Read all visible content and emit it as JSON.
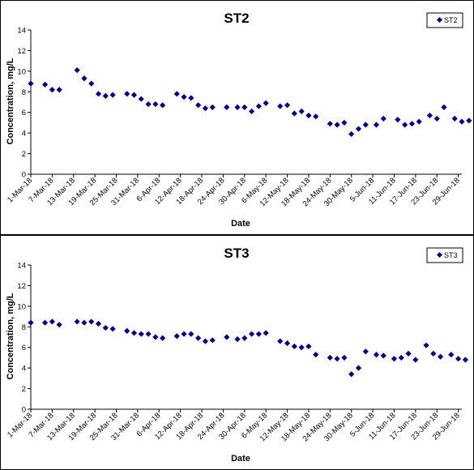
{
  "chart_data": [
    {
      "type": "scatter",
      "title": "ST2",
      "xlabel": "Date",
      "ylabel": "Concentration, mg/L",
      "ylim": [
        0,
        14
      ],
      "yticks": [
        0,
        2,
        4,
        6,
        8,
        10,
        12,
        14
      ],
      "xlim": [
        "2018-03-01",
        "2018-06-30"
      ],
      "xtick_labels": [
        "1-Mar-18",
        "7-Mar-18",
        "13-Mar-18",
        "19-Mar-18",
        "25-Mar-18",
        "31-Mar-18",
        "6-Apr-18",
        "12-Apr-18",
        "18-Apr-18",
        "24-Apr-18",
        "30-Apr-18",
        "6-May-18",
        "12-May-18",
        "18-May-18",
        "24-May-18",
        "30-May-18",
        "5-Jun-18",
        "11-Jun-18",
        "17-Jun-18",
        "23-Jun-18",
        "29-Jun-18"
      ],
      "grid": false,
      "legend": "top-right",
      "marker_color": "#000080",
      "series": [
        {
          "name": "ST2",
          "points": [
            {
              "x": "2018-03-01",
              "y": 8.8
            },
            {
              "x": "2018-03-05",
              "y": 8.7
            },
            {
              "x": "2018-03-07",
              "y": 8.2
            },
            {
              "x": "2018-03-09",
              "y": 8.2
            },
            {
              "x": "2018-03-14",
              "y": 10.1
            },
            {
              "x": "2018-03-16",
              "y": 9.3
            },
            {
              "x": "2018-03-18",
              "y": 8.8
            },
            {
              "x": "2018-03-20",
              "y": 7.8
            },
            {
              "x": "2018-03-22",
              "y": 7.6
            },
            {
              "x": "2018-03-24",
              "y": 7.7
            },
            {
              "x": "2018-03-28",
              "y": 7.8
            },
            {
              "x": "2018-03-30",
              "y": 7.7
            },
            {
              "x": "2018-04-01",
              "y": 7.3
            },
            {
              "x": "2018-04-03",
              "y": 6.8
            },
            {
              "x": "2018-04-05",
              "y": 6.8
            },
            {
              "x": "2018-04-07",
              "y": 6.7
            },
            {
              "x": "2018-04-11",
              "y": 7.8
            },
            {
              "x": "2018-04-13",
              "y": 7.5
            },
            {
              "x": "2018-04-15",
              "y": 7.4
            },
            {
              "x": "2018-04-17",
              "y": 6.7
            },
            {
              "x": "2018-04-19",
              "y": 6.4
            },
            {
              "x": "2018-04-21",
              "y": 6.5
            },
            {
              "x": "2018-04-25",
              "y": 6.5
            },
            {
              "x": "2018-04-28",
              "y": 6.5
            },
            {
              "x": "2018-04-30",
              "y": 6.5
            },
            {
              "x": "2018-05-02",
              "y": 6.1
            },
            {
              "x": "2018-05-04",
              "y": 6.6
            },
            {
              "x": "2018-05-06",
              "y": 6.9
            },
            {
              "x": "2018-05-10",
              "y": 6.6
            },
            {
              "x": "2018-05-12",
              "y": 6.7
            },
            {
              "x": "2018-05-14",
              "y": 5.9
            },
            {
              "x": "2018-05-16",
              "y": 6.1
            },
            {
              "x": "2018-05-18",
              "y": 5.7
            },
            {
              "x": "2018-05-20",
              "y": 5.6
            },
            {
              "x": "2018-05-24",
              "y": 4.9
            },
            {
              "x": "2018-05-26",
              "y": 4.8
            },
            {
              "x": "2018-05-28",
              "y": 5.0
            },
            {
              "x": "2018-05-30",
              "y": 3.9
            },
            {
              "x": "2018-06-01",
              "y": 4.4
            },
            {
              "x": "2018-06-03",
              "y": 4.8
            },
            {
              "x": "2018-06-06",
              "y": 4.8
            },
            {
              "x": "2018-06-08",
              "y": 5.4
            },
            {
              "x": "2018-06-12",
              "y": 5.3
            },
            {
              "x": "2018-06-14",
              "y": 4.8
            },
            {
              "x": "2018-06-16",
              "y": 4.9
            },
            {
              "x": "2018-06-18",
              "y": 5.1
            },
            {
              "x": "2018-06-21",
              "y": 5.7
            },
            {
              "x": "2018-06-23",
              "y": 5.4
            },
            {
              "x": "2018-06-25",
              "y": 6.5
            },
            {
              "x": "2018-06-28",
              "y": 5.4
            },
            {
              "x": "2018-06-30",
              "y": 5.1
            },
            {
              "x": "2018-07-02",
              "y": 5.2
            }
          ]
        }
      ]
    },
    {
      "type": "scatter",
      "title": "ST3",
      "xlabel": "Date",
      "ylabel": "Concentration, mg/L",
      "ylim": [
        0,
        14
      ],
      "yticks": [
        0,
        2,
        4,
        6,
        8,
        10,
        12,
        14
      ],
      "xlim": [
        "2018-03-01",
        "2018-06-30"
      ],
      "xtick_labels": [
        "1-Mar-18",
        "7-Mar-18",
        "13-Mar-18",
        "19-Mar-18",
        "25-Mar-18",
        "31-Mar-18",
        "6-Apr-18",
        "12-Apr-18",
        "18-Apr-18",
        "24-Apr-18",
        "30-Apr-18",
        "6-May-18",
        "12-May-18",
        "18-May-18",
        "24-May-18",
        "30-May-18",
        "5-Jun-18",
        "11-Jun-18",
        "17-Jun-18",
        "23-Jun-18",
        "29-Jun-18"
      ],
      "grid": false,
      "legend": "top-right",
      "marker_color": "#000080",
      "series": [
        {
          "name": "ST3",
          "points": [
            {
              "x": "2018-03-01",
              "y": 8.4
            },
            {
              "x": "2018-03-05",
              "y": 8.4
            },
            {
              "x": "2018-03-07",
              "y": 8.5
            },
            {
              "x": "2018-03-09",
              "y": 8.2
            },
            {
              "x": "2018-03-14",
              "y": 8.5
            },
            {
              "x": "2018-03-16",
              "y": 8.4
            },
            {
              "x": "2018-03-18",
              "y": 8.5
            },
            {
              "x": "2018-03-20",
              "y": 8.3
            },
            {
              "x": "2018-03-22",
              "y": 7.9
            },
            {
              "x": "2018-03-24",
              "y": 7.8
            },
            {
              "x": "2018-03-28",
              "y": 7.6
            },
            {
              "x": "2018-03-30",
              "y": 7.4
            },
            {
              "x": "2018-04-01",
              "y": 7.3
            },
            {
              "x": "2018-04-03",
              "y": 7.3
            },
            {
              "x": "2018-04-05",
              "y": 7.0
            },
            {
              "x": "2018-04-07",
              "y": 6.9
            },
            {
              "x": "2018-04-11",
              "y": 7.1
            },
            {
              "x": "2018-04-13",
              "y": 7.3
            },
            {
              "x": "2018-04-15",
              "y": 7.3
            },
            {
              "x": "2018-04-17",
              "y": 6.9
            },
            {
              "x": "2018-04-19",
              "y": 6.6
            },
            {
              "x": "2018-04-21",
              "y": 6.7
            },
            {
              "x": "2018-04-25",
              "y": 7.0
            },
            {
              "x": "2018-04-28",
              "y": 6.8
            },
            {
              "x": "2018-04-30",
              "y": 6.9
            },
            {
              "x": "2018-05-02",
              "y": 7.3
            },
            {
              "x": "2018-05-04",
              "y": 7.3
            },
            {
              "x": "2018-05-06",
              "y": 7.4
            },
            {
              "x": "2018-05-10",
              "y": 6.6
            },
            {
              "x": "2018-05-12",
              "y": 6.4
            },
            {
              "x": "2018-05-14",
              "y": 6.1
            },
            {
              "x": "2018-05-16",
              "y": 6.0
            },
            {
              "x": "2018-05-18",
              "y": 6.1
            },
            {
              "x": "2018-05-20",
              "y": 5.3
            },
            {
              "x": "2018-05-24",
              "y": 5.0
            },
            {
              "x": "2018-05-26",
              "y": 4.9
            },
            {
              "x": "2018-05-28",
              "y": 5.0
            },
            {
              "x": "2018-05-30",
              "y": 3.4
            },
            {
              "x": "2018-06-01",
              "y": 4.0
            },
            {
              "x": "2018-06-03",
              "y": 5.6
            },
            {
              "x": "2018-06-06",
              "y": 5.3
            },
            {
              "x": "2018-06-08",
              "y": 5.2
            },
            {
              "x": "2018-06-11",
              "y": 4.9
            },
            {
              "x": "2018-06-13",
              "y": 5.0
            },
            {
              "x": "2018-06-15",
              "y": 5.4
            },
            {
              "x": "2018-06-17",
              "y": 4.8
            },
            {
              "x": "2018-06-20",
              "y": 6.2
            },
            {
              "x": "2018-06-22",
              "y": 5.4
            },
            {
              "x": "2018-06-24",
              "y": 5.1
            },
            {
              "x": "2018-06-27",
              "y": 5.3
            },
            {
              "x": "2018-06-29",
              "y": 4.9
            },
            {
              "x": "2018-07-01",
              "y": 4.8
            }
          ]
        }
      ]
    }
  ]
}
